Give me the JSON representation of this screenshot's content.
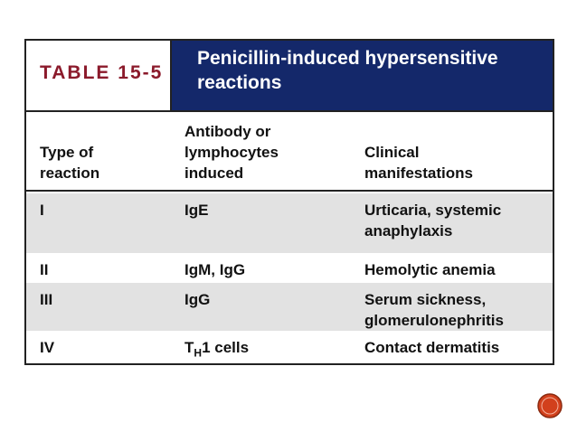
{
  "table": {
    "label": "TABLE 15-5",
    "title": "Penicillin-induced hypersensitive reactions",
    "headers": [
      [
        "Type of",
        "reaction"
      ],
      [
        "Antibody or",
        "lymphocytes",
        "induced"
      ],
      [
        "Clinical",
        "manifestations"
      ]
    ],
    "rows": [
      [
        "I",
        "IgE",
        "Urticaria, systemic anaphylaxis"
      ],
      [
        "II",
        "IgM, IgG",
        "Hemolytic anemia"
      ],
      [
        "III",
        "IgG",
        "Serum sickness, glomerulonephritis"
      ],
      [
        "IV",
        {
          "base": "T",
          "sub": "H",
          "rest": "1 cells"
        },
        "Contact dermatitis"
      ]
    ]
  }
}
